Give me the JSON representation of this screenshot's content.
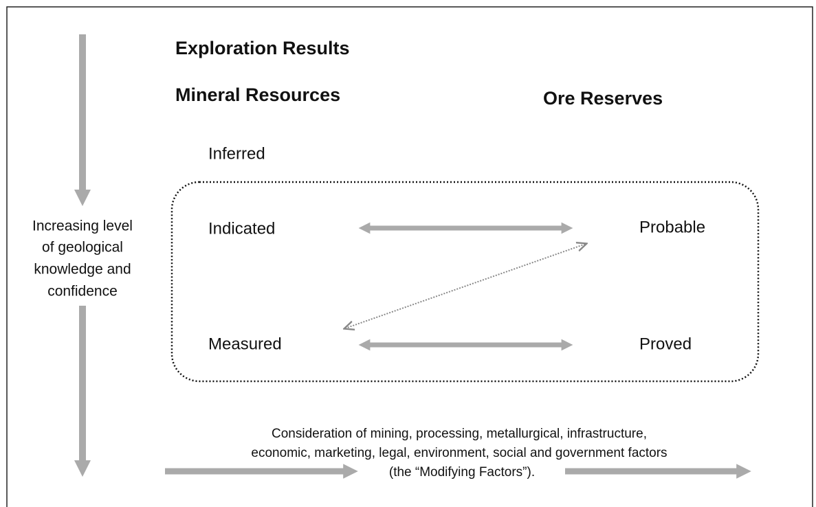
{
  "headings": {
    "exploration": "Exploration Results",
    "resources": "Mineral Resources",
    "reserves": "Ore Reserves"
  },
  "categories": {
    "inferred": "Inferred",
    "indicated": "Indicated",
    "measured": "Measured",
    "probable": "Probable",
    "proved": "Proved"
  },
  "side_label": [
    "Increasing level",
    "of geological",
    "knowledge and",
    "confidence"
  ],
  "modifying_factors": [
    "Consideration of mining, processing, metallurgical, infrastructure,",
    "economic, marketing, legal, environment, social and government factors",
    "(the “Modifying Factors”)."
  ]
}
